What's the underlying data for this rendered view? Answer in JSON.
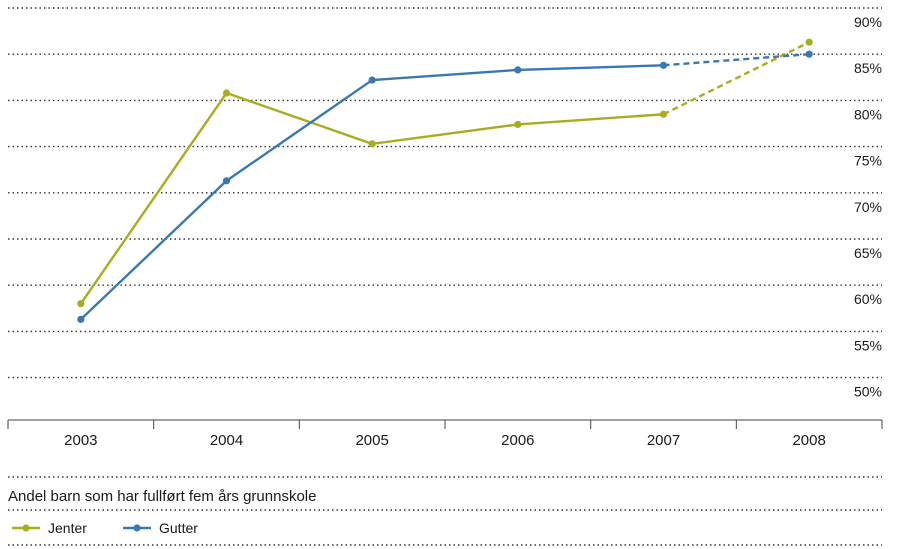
{
  "chart_data": {
    "type": "line",
    "categories": [
      "2003",
      "2004",
      "2005",
      "2006",
      "2007",
      "2008"
    ],
    "y_ticks": [
      "90%",
      "85%",
      "80%",
      "75%",
      "70%",
      "65%",
      "60%",
      "55%",
      "50%"
    ],
    "ylim": [
      50,
      90
    ],
    "grid": true,
    "caption": "Andel barn som har fullført fem års grunnskole",
    "legend_position": "bottom-left",
    "series": [
      {
        "name": "Jenter",
        "color": "#a8ad1e",
        "values": [
          58.0,
          80.8,
          75.3,
          77.4,
          78.5,
          86.3
        ],
        "dashed_from_index": 4
      },
      {
        "name": "Gutter",
        "color": "#3a78b0",
        "values": [
          56.3,
          71.3,
          82.2,
          83.3,
          83.8,
          85.0
        ],
        "dashed_from_index": 4
      }
    ]
  }
}
